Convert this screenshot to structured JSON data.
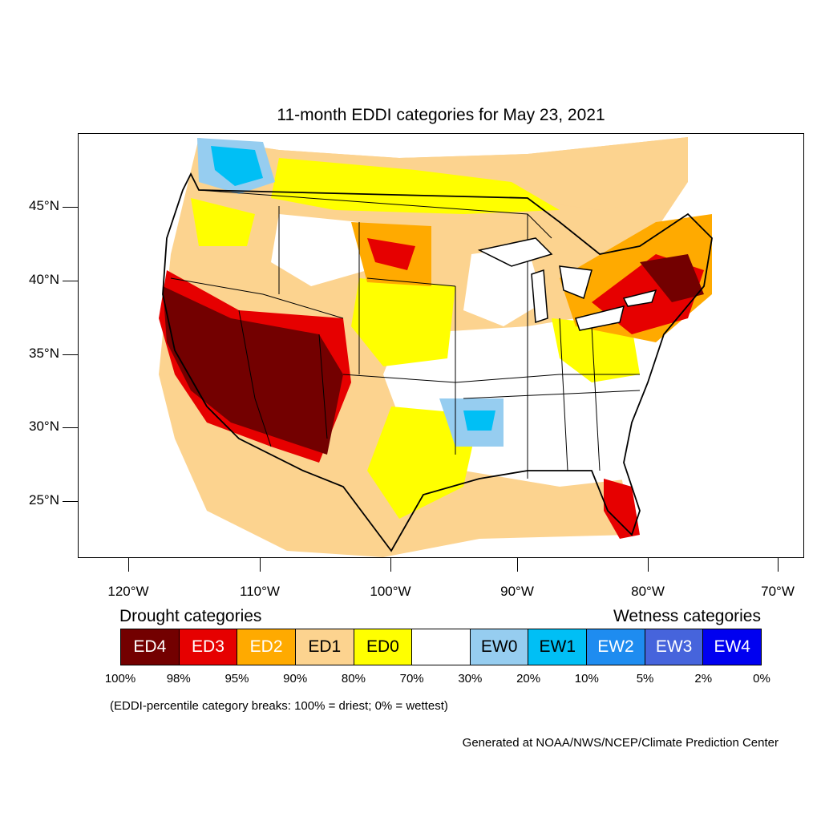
{
  "title": "11-month EDDI categories for May 23, 2021",
  "lat_labels": [
    "45°N",
    "40°N",
    "35°N",
    "30°N",
    "25°N"
  ],
  "lon_labels": [
    "120°W",
    "110°W",
    "100°W",
    "90°W",
    "80°W",
    "70°W"
  ],
  "legend": {
    "drought_label": "Drought categories",
    "wetness_label": "Wetness categories",
    "categories": [
      {
        "label": "ED4",
        "color": "#730000",
        "text_color": "#ffffff"
      },
      {
        "label": "ED3",
        "color": "#e60000",
        "text_color": "#ffffff"
      },
      {
        "label": "ED2",
        "color": "#ffaa00",
        "text_color": "#ffffff"
      },
      {
        "label": "ED1",
        "color": "#fcd38f",
        "text_color": "#000000"
      },
      {
        "label": "ED0",
        "color": "#ffff00",
        "text_color": "#000000"
      },
      {
        "label": "",
        "color": "#ffffff",
        "text_color": "#000000"
      },
      {
        "label": "EW0",
        "color": "#96cdf0",
        "text_color": "#000000"
      },
      {
        "label": "EW1",
        "color": "#00bff5",
        "text_color": "#000000"
      },
      {
        "label": "EW2",
        "color": "#1e8cf0",
        "text_color": "#ffffff"
      },
      {
        "label": "EW3",
        "color": "#4664dc",
        "text_color": "#ffffff"
      },
      {
        "label": "EW4",
        "color": "#0000f0",
        "text_color": "#ffffff"
      }
    ],
    "breaks": [
      "100%",
      "98%",
      "95%",
      "90%",
      "80%",
      "70%",
      "30%",
      "20%",
      "10%",
      "5%",
      "2%",
      "0%"
    ]
  },
  "note": "(EDDI-percentile category breaks: 100% = driest; 0% = wettest)",
  "credit": "Generated at NOAA/NWS/NCEP/Climate Prediction Center"
}
